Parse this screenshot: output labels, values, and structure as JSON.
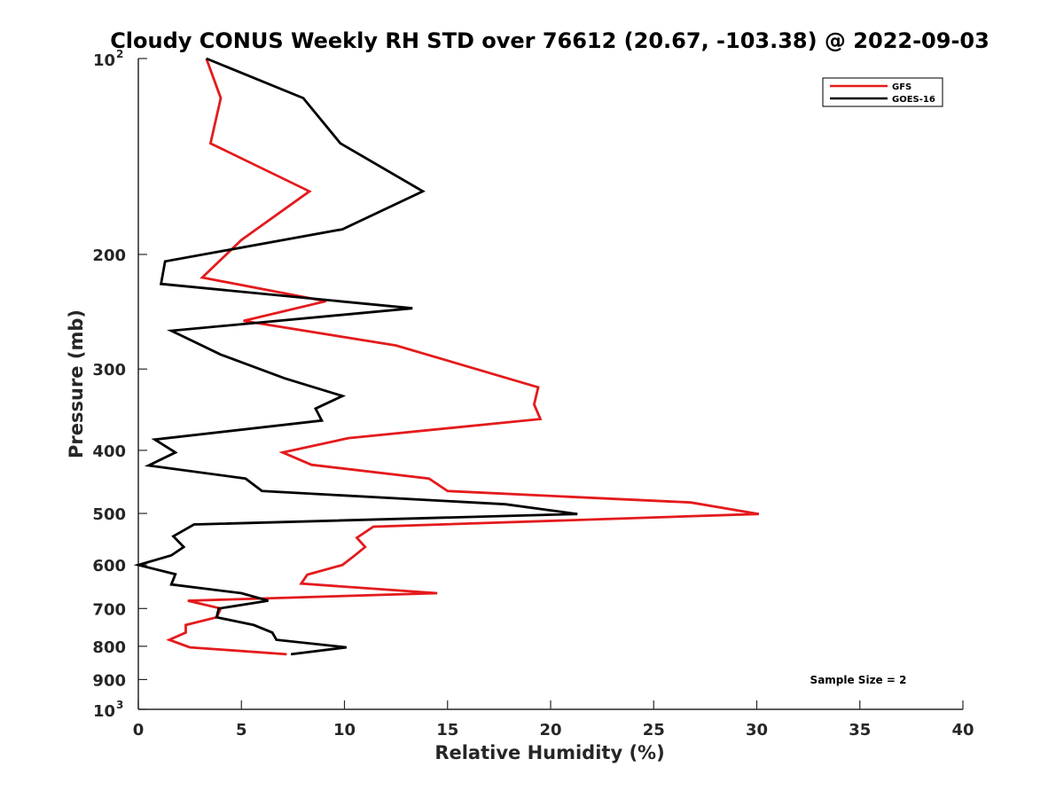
{
  "chart_data": {
    "type": "line",
    "title": "Cloudy CONUS Weekly RH STD over 76612 (20.67, -103.38) @ 2022-09-03",
    "xlabel": "Relative Humidity (%)",
    "ylabel": "Pressure (mb)",
    "xlim": [
      0,
      40
    ],
    "ylim": [
      100,
      1000
    ],
    "yscale": "log",
    "y_reversed": true,
    "grid": false,
    "legend_position": "top-right",
    "xticks": [
      "0",
      "5",
      "10",
      "15",
      "20",
      "25",
      "30",
      "35",
      "40"
    ],
    "yticks": [
      {
        "value": 100,
        "base": "10",
        "exp": "2"
      },
      {
        "value": 200,
        "label": "200"
      },
      {
        "value": 300,
        "label": "300"
      },
      {
        "value": 400,
        "label": "400"
      },
      {
        "value": 500,
        "label": "500"
      },
      {
        "value": 600,
        "label": "600"
      },
      {
        "value": 700,
        "label": "700"
      },
      {
        "value": 800,
        "label": "800"
      },
      {
        "value": 900,
        "label": "900"
      },
      {
        "value": 1000,
        "base": "10",
        "exp": "3"
      }
    ],
    "annotation": "Sample Size = 2",
    "series": [
      {
        "name": "GFS",
        "color": "#e41a1c",
        "points": [
          [
            3.3,
            100
          ],
          [
            4.0,
            115
          ],
          [
            3.5,
            135
          ],
          [
            8.3,
            160
          ],
          [
            5.0,
            190
          ],
          [
            3.1,
            217
          ],
          [
            9.1,
            236
          ],
          [
            5.1,
            253
          ],
          [
            12.5,
            276
          ],
          [
            19.4,
            320
          ],
          [
            19.2,
            340
          ],
          [
            19.5,
            358
          ],
          [
            10.2,
            383
          ],
          [
            7.0,
            403
          ],
          [
            8.4,
            421
          ],
          [
            14.1,
            442
          ],
          [
            15.0,
            462
          ],
          [
            26.8,
            481
          ],
          [
            30.1,
            501
          ],
          [
            11.4,
            524
          ],
          [
            10.6,
            545
          ],
          [
            11.0,
            563
          ],
          [
            10.5,
            580
          ],
          [
            9.9,
            600
          ],
          [
            8.2,
            621
          ],
          [
            7.9,
            641
          ],
          [
            14.5,
            663
          ],
          [
            2.4,
            681
          ],
          [
            4.0,
            700
          ],
          [
            3.8,
            722
          ],
          [
            2.3,
            742
          ],
          [
            2.3,
            762
          ],
          [
            1.5,
            782
          ],
          [
            2.5,
            803
          ],
          [
            7.2,
            823
          ]
        ]
      },
      {
        "name": "GOES-16",
        "color": "#000000",
        "points": [
          [
            3.3,
            100
          ],
          [
            8.0,
            115
          ],
          [
            9.8,
            135
          ],
          [
            13.8,
            160
          ],
          [
            9.9,
            183
          ],
          [
            1.3,
            205
          ],
          [
            1.1,
            222
          ],
          [
            13.3,
            242
          ],
          [
            1.6,
            262
          ],
          [
            4.0,
            285
          ],
          [
            7.1,
            310
          ],
          [
            9.9,
            330
          ],
          [
            8.6,
            345
          ],
          [
            8.9,
            360
          ],
          [
            0.8,
            385
          ],
          [
            1.8,
            403
          ],
          [
            0.5,
            422
          ],
          [
            5.2,
            442
          ],
          [
            6.0,
            462
          ],
          [
            17.8,
            484
          ],
          [
            21.3,
            501
          ],
          [
            2.7,
            520
          ],
          [
            1.7,
            542
          ],
          [
            2.2,
            563
          ],
          [
            1.6,
            580
          ],
          [
            0.0,
            600
          ],
          [
            1.8,
            620
          ],
          [
            1.6,
            643
          ],
          [
            5.0,
            663
          ],
          [
            6.3,
            681
          ],
          [
            3.9,
            700
          ],
          [
            3.8,
            722
          ],
          [
            5.6,
            742
          ],
          [
            6.5,
            762
          ],
          [
            6.7,
            782
          ],
          [
            10.1,
            803
          ],
          [
            7.4,
            823
          ]
        ]
      }
    ]
  }
}
